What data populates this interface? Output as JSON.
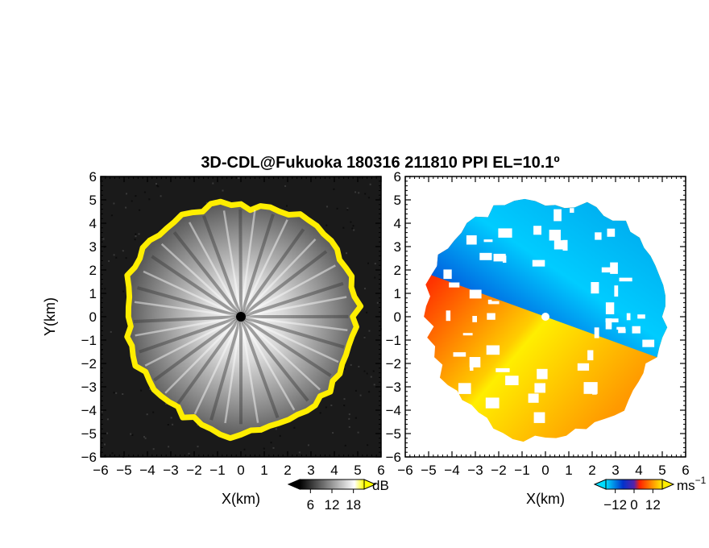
{
  "title": "3D-CDL@Fukuoka 180316 211810 PPI EL=10.1º",
  "chart_data": [
    {
      "type": "heatmap",
      "quantity": "signal intensity",
      "xlabel": "X(km)",
      "ylabel": "Y(km)",
      "xlim": [
        -6,
        6
      ],
      "ylim": [
        -6,
        6
      ],
      "ticks": [
        "−6",
        "−5",
        "−4",
        "−3",
        "−2",
        "−1",
        "0",
        "1",
        "2",
        "3",
        "4",
        "5",
        "6"
      ],
      "approx_echo_radius_km": 4.9,
      "colorbar": {
        "unit": "dB",
        "tick_labels": [
          "6",
          "12",
          "18"
        ],
        "range": [
          3,
          21
        ],
        "colors": [
          "#000000",
          "#ffffff",
          "#ffff00"
        ]
      }
    },
    {
      "type": "heatmap",
      "quantity": "radial velocity",
      "xlabel": "X(km)",
      "xlim": [
        -6,
        6
      ],
      "ylim": [
        -6,
        6
      ],
      "ticks": [
        "−6",
        "−5",
        "−4",
        "−3",
        "−2",
        "−1",
        "0",
        "1",
        "2",
        "3",
        "4",
        "5",
        "6"
      ],
      "approx_echo_radius_km": 5.1,
      "colorbar": {
        "unit": "ms",
        "unit_exponent": "−1",
        "tick_labels": [
          "−12",
          "0",
          "12"
        ],
        "range": [
          -18,
          18
        ],
        "colors": [
          "#0033cc",
          "#00ddff",
          "#ff2200",
          "#ffee00"
        ]
      }
    }
  ]
}
